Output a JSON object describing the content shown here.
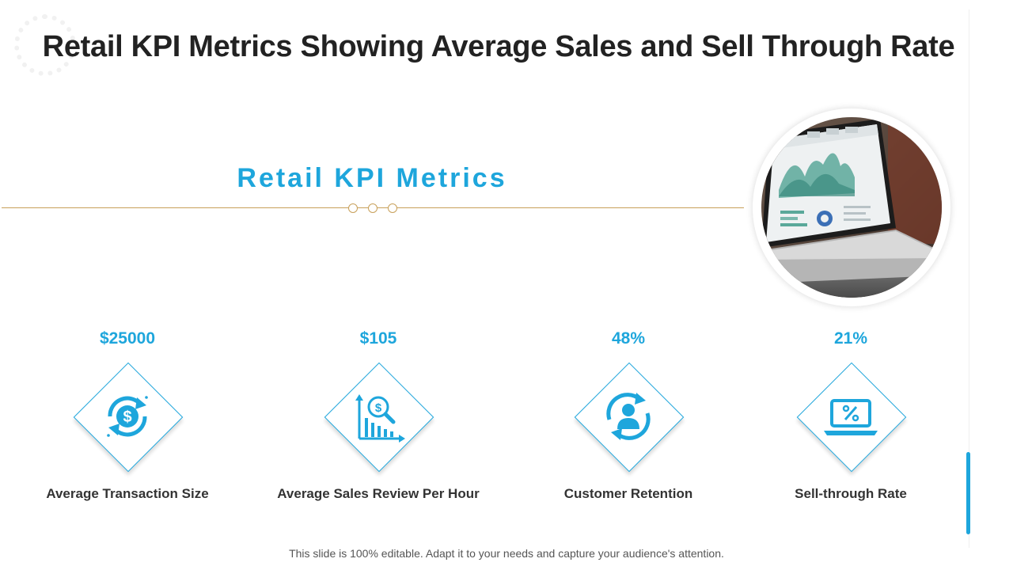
{
  "slide": {
    "title": "Retail KPI Metrics Showing Average Sales and Sell Through Rate",
    "section_title": "Retail KPI Metrics",
    "footer": "This slide is 100% editable. Adapt it to your needs and capture your audience's attention.",
    "accent_color": "#1ea6dc",
    "divider_color": "#c8a05a"
  },
  "kpis": [
    {
      "value": "$25000",
      "label": "Average Transaction Size",
      "icon": "dollar-cycle-icon"
    },
    {
      "value": "$105",
      "label": "Average Sales Review Per Hour",
      "icon": "sales-analysis-icon"
    },
    {
      "value": "48%",
      "label": "Customer Retention",
      "icon": "customer-retention-icon"
    },
    {
      "value": "21%",
      "label": "Sell-through Rate",
      "icon": "laptop-percent-icon"
    }
  ],
  "image": {
    "subject": "laptop-dashboard-photo"
  }
}
